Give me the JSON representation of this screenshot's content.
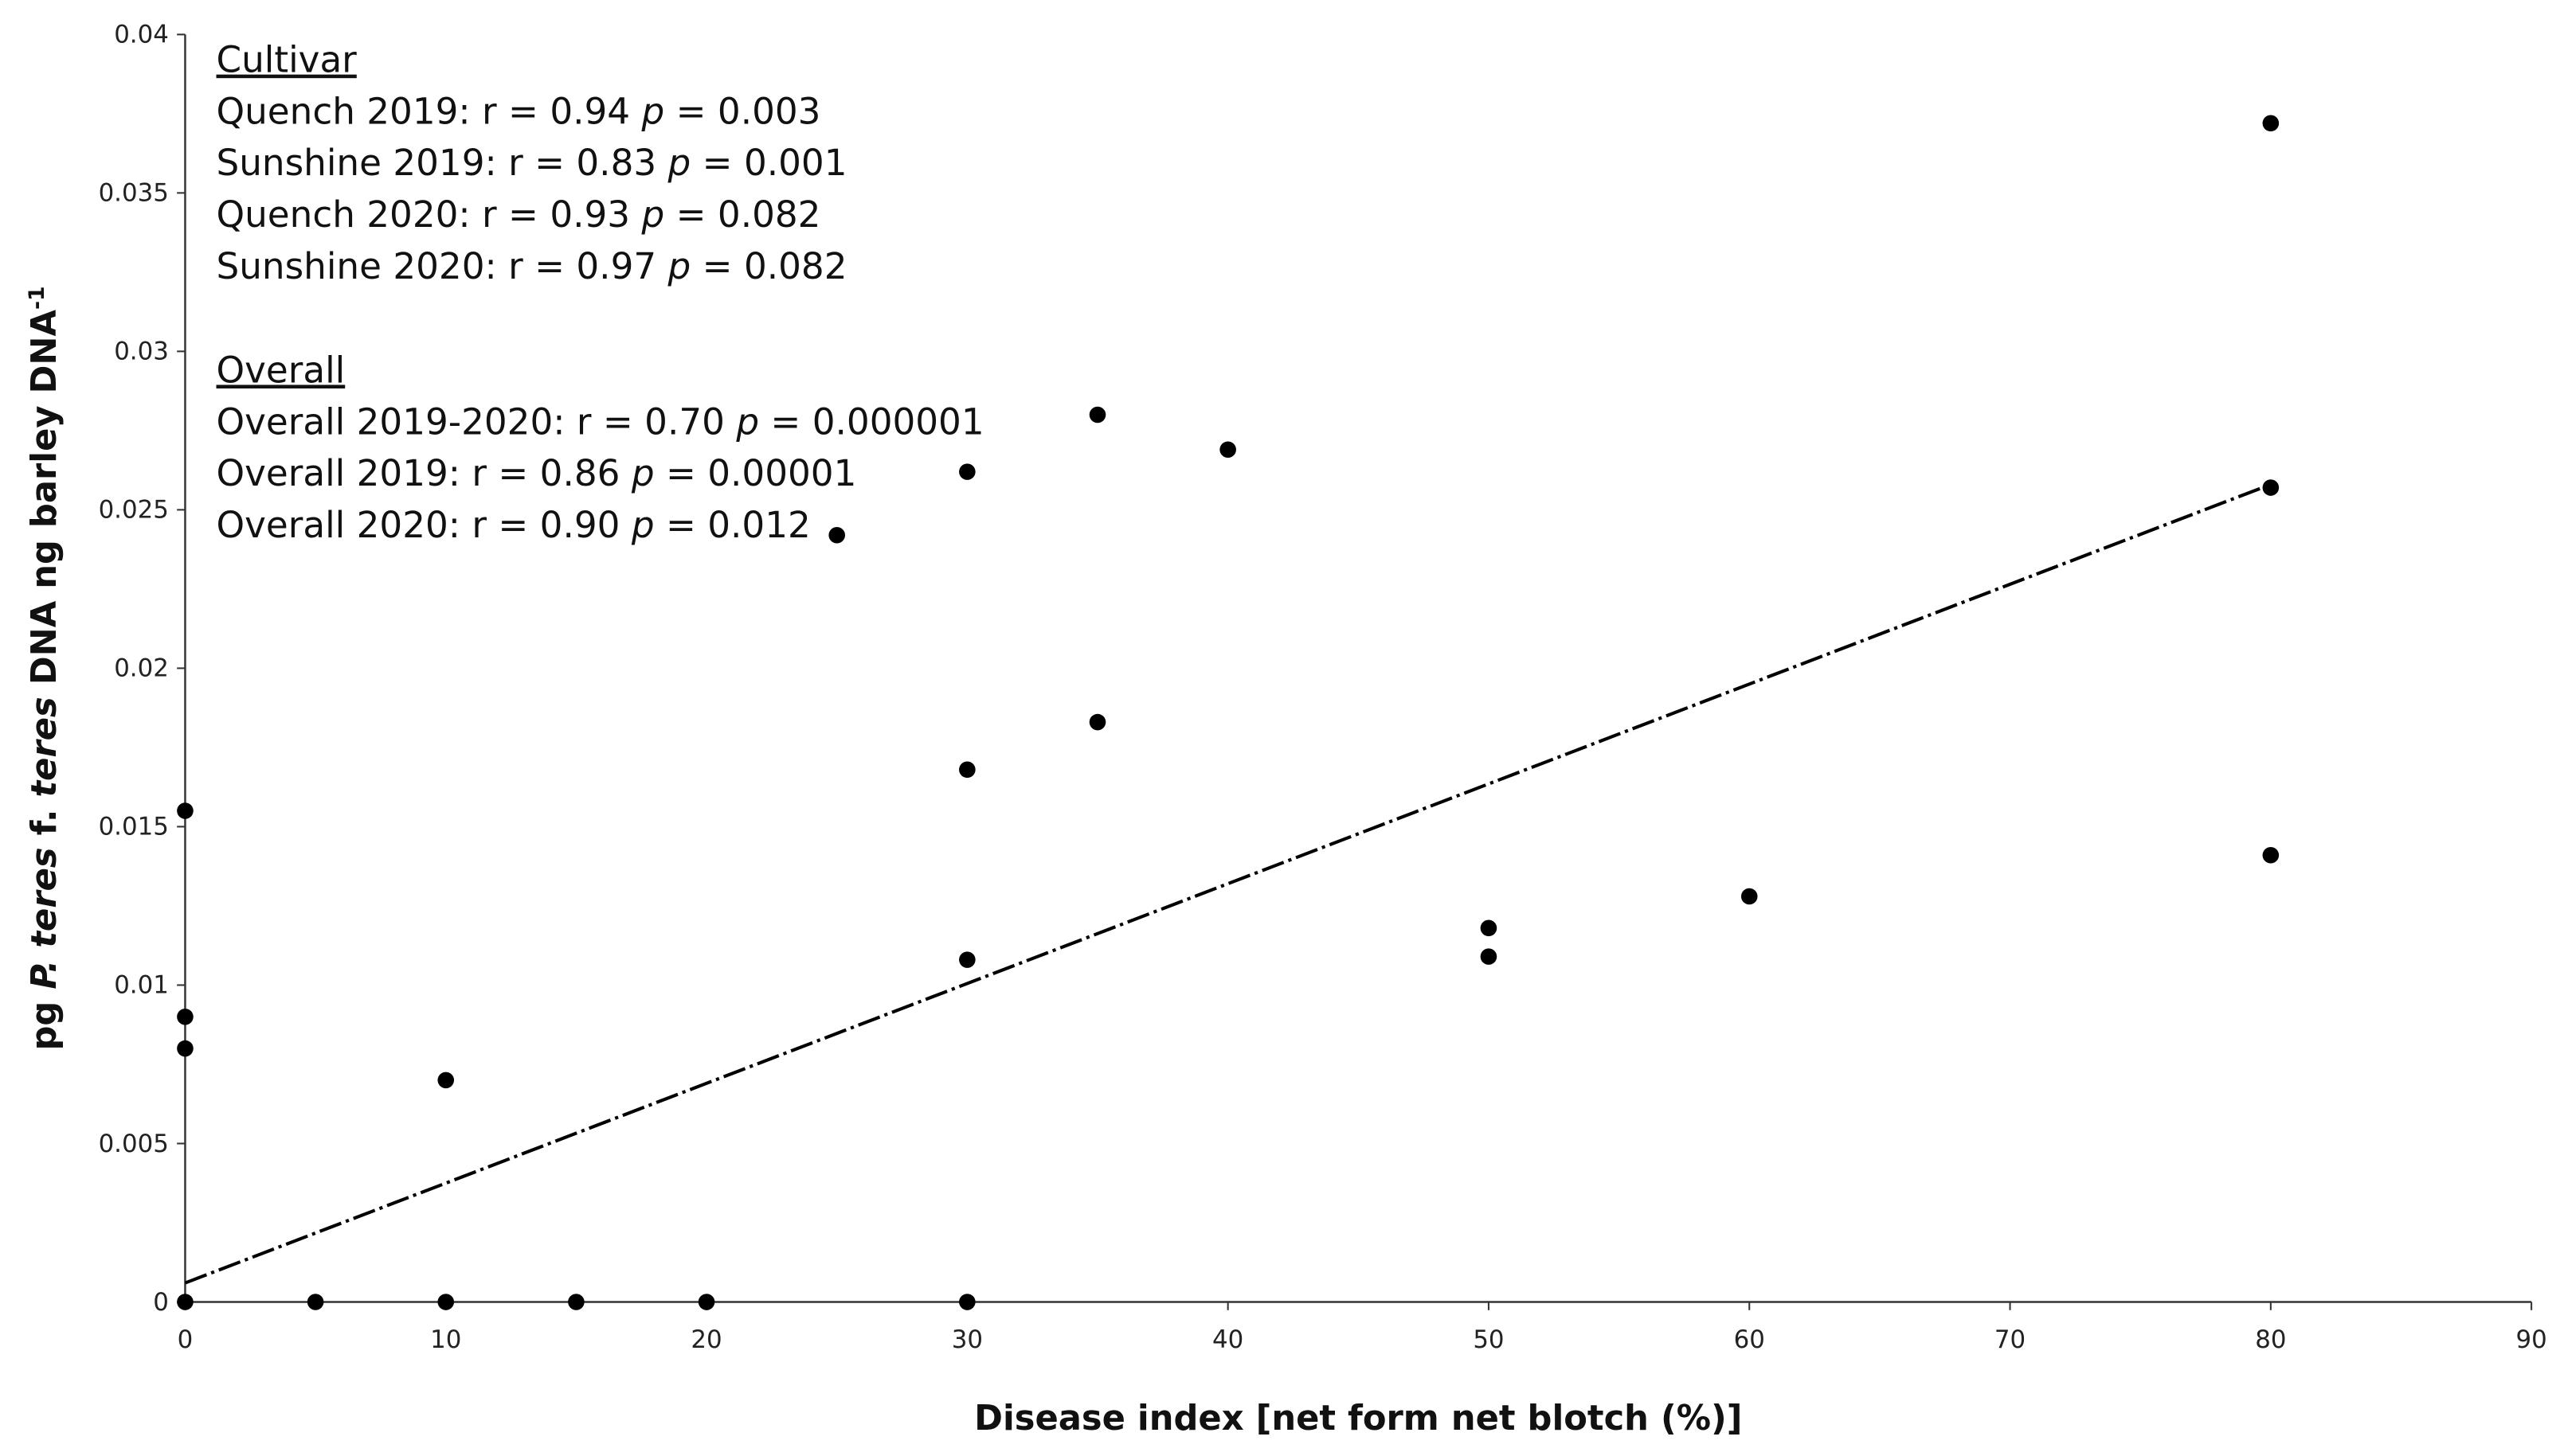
{
  "chart_data": {
    "type": "scatter",
    "x_label": "Disease index [net form net blotch (%)]",
    "y_label": [
      {
        "text": "pg "
      },
      {
        "text": "P. teres",
        "italic": true
      },
      {
        "text": " f. "
      },
      {
        "text": "teres",
        "italic": true
      },
      {
        "text": " DNA ng barley DNA"
      },
      {
        "text": "-1",
        "superscript": true
      }
    ],
    "annotations": [
      {
        "heading": "Cultivar",
        "lines": [
          [
            "Quench 2019: r = 0.94 ",
            "p",
            " = 0.003"
          ],
          [
            "Sunshine 2019: r = 0.83 ",
            "p",
            " = 0.001"
          ],
          [
            "Quench 2020: r = 0.93 ",
            "p",
            " = 0.082"
          ],
          [
            "Sunshine 2020: r = 0.97 ",
            "p",
            " = 0.082"
          ]
        ]
      },
      {
        "heading": "Overall",
        "lines": [
          [
            "Overall 2019-2020: r = 0.70 ",
            "p",
            " = 0.000001"
          ],
          [
            "Overall 2019: r = 0.86 ",
            "p",
            " = 0.00001"
          ],
          [
            "Overall 2020: r = 0.90 ",
            "p",
            " = 0.012"
          ]
        ]
      }
    ],
    "x": [
      0,
      0,
      0,
      0,
      5,
      10,
      10,
      15,
      20,
      25,
      30,
      30,
      30,
      30,
      35,
      35,
      40,
      50,
      50,
      60,
      80,
      80,
      80
    ],
    "y": [
      0.0155,
      0.009,
      0.008,
      0,
      0,
      0.007,
      0,
      0,
      0,
      0.0242,
      0.0262,
      0.0168,
      0.0108,
      0,
      0.028,
      0.0183,
      0.0269,
      0.0118,
      0.0109,
      0.0128,
      0.0372,
      0.0257,
      0.0141
    ],
    "color": "#000000",
    "trendline": {
      "x": [
        0,
        80
      ],
      "y": [
        0.0006,
        0.0258
      ],
      "color": "#000000"
    },
    "xlim": [
      0,
      90
    ],
    "xticks": [
      0,
      10,
      20,
      30,
      40,
      50,
      60,
      70,
      80,
      90
    ],
    "ylim": [
      0,
      0.04
    ],
    "yticks": [
      0,
      0.005,
      0.01,
      0.015,
      0.02,
      0.025,
      0.03,
      0.035,
      0.04
    ],
    "grid": false
  }
}
